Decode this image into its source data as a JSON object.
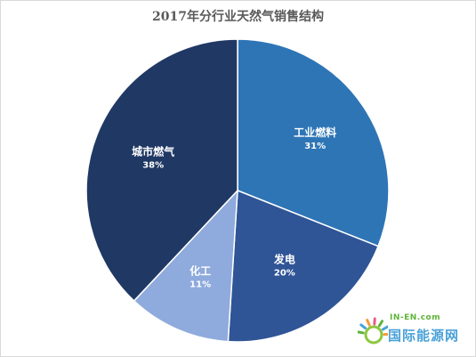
{
  "chart_data": {
    "type": "pie",
    "title": "2017年分行业天然气销售结构",
    "slices": [
      {
        "label": "工业燃料",
        "value": 31,
        "pct_text": "31%",
        "color": "#2e75b6"
      },
      {
        "label": "发电",
        "value": 20,
        "pct_text": "20%",
        "color": "#2f5597"
      },
      {
        "label": "化工",
        "value": 11,
        "pct_text": "11%",
        "color": "#8faadc"
      },
      {
        "label": "城市燃气",
        "value": 38,
        "pct_text": "38%",
        "color": "#203864"
      }
    ],
    "start_angle_deg": 0,
    "direction": "clockwise",
    "legend": "none",
    "data_labels": "inside"
  },
  "watermark": {
    "top_text": "IN-EN.com",
    "main_text": "国际能源网",
    "colors": [
      "#5fb43a",
      "#4aa1d8",
      "#f29c38",
      "#e85c8a"
    ]
  }
}
